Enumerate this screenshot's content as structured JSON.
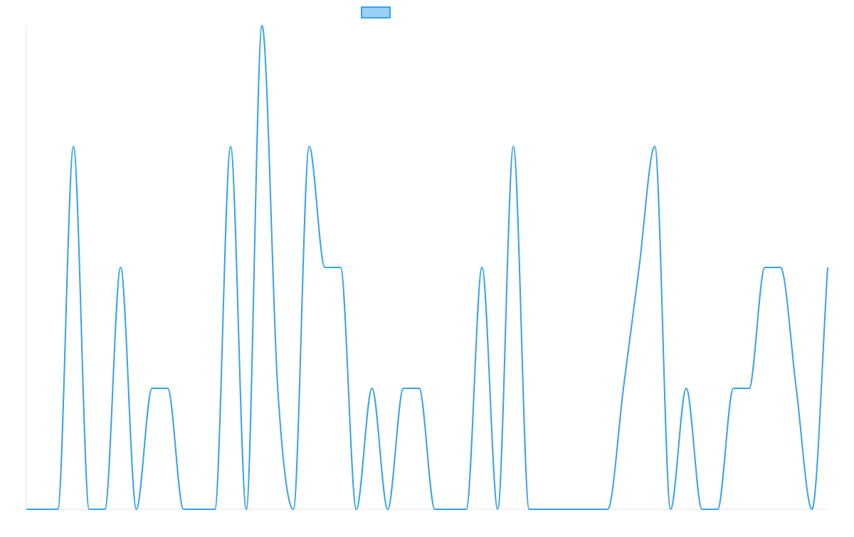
{
  "chart_data": {
    "type": "line",
    "title": "",
    "xlabel": "",
    "ylabel": "",
    "grid": false,
    "legend_placement": "top-center",
    "x": [
      0,
      1,
      2,
      3,
      4,
      5,
      6,
      7,
      8,
      9,
      10,
      11,
      12,
      13,
      14,
      15,
      16,
      17,
      18,
      19,
      20,
      21,
      22,
      23,
      24,
      25,
      26,
      27,
      28,
      29,
      30,
      31,
      32,
      33,
      34,
      35,
      36,
      37,
      38,
      39,
      40,
      41,
      42,
      43,
      44,
      45,
      46,
      47,
      48,
      49,
      50,
      51
    ],
    "xlim": [
      0,
      51
    ],
    "ylim": [
      0,
      4
    ],
    "series": [
      {
        "name": "",
        "color": "#36A2EB",
        "fill_color": "#9AD0F5",
        "values": [
          0,
          0,
          0,
          3,
          0,
          0,
          2,
          0,
          1,
          1,
          0,
          0,
          0,
          3,
          0,
          4,
          1,
          0,
          3,
          2,
          2,
          0,
          1,
          0,
          1,
          1,
          0,
          0,
          0,
          2,
          0,
          3,
          0,
          0,
          0,
          0,
          0,
          0,
          1,
          2,
          3,
          0,
          1,
          0,
          0,
          1,
          1,
          2,
          2,
          1,
          0,
          2
        ]
      }
    ]
  }
}
